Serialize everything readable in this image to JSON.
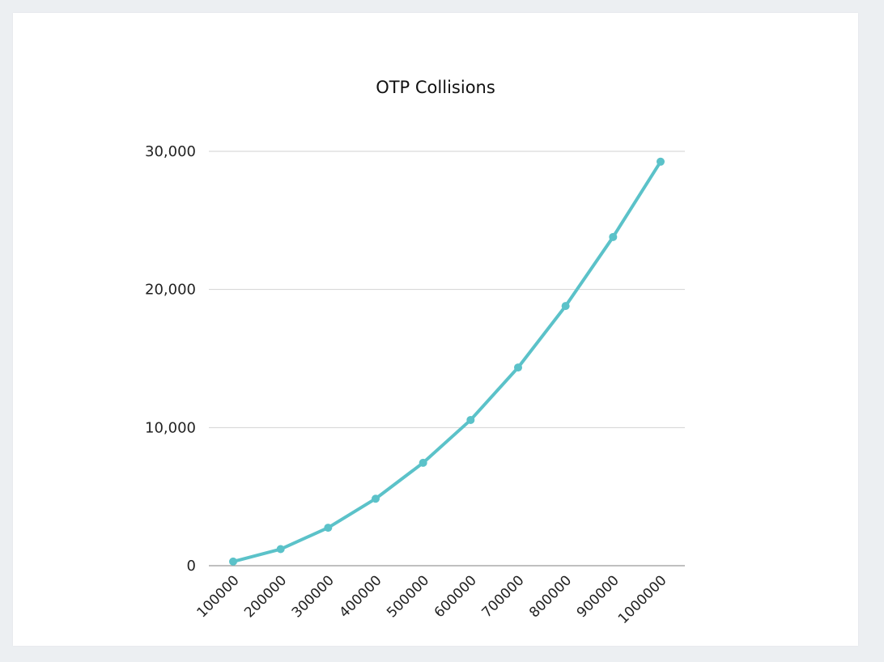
{
  "chart_data": {
    "type": "line",
    "title": "OTP Collisions",
    "xlabel": "",
    "ylabel": "",
    "categories": [
      "100000",
      "200000",
      "300000",
      "400000",
      "500000",
      "600000",
      "700000",
      "800000",
      "900000",
      "1000000"
    ],
    "series": [
      {
        "values": [
          300,
          1200,
          2750,
          4850,
          7450,
          10550,
          14350,
          18800,
          23800,
          29250
        ],
        "color": "#5bc2c9"
      }
    ],
    "ylim": [
      0,
      30000
    ],
    "yticks": [
      0,
      10000,
      20000,
      30000
    ],
    "ytick_labels": [
      "0",
      "10,000",
      "20,000",
      "30,000"
    ],
    "grid": true,
    "legend": "none"
  }
}
